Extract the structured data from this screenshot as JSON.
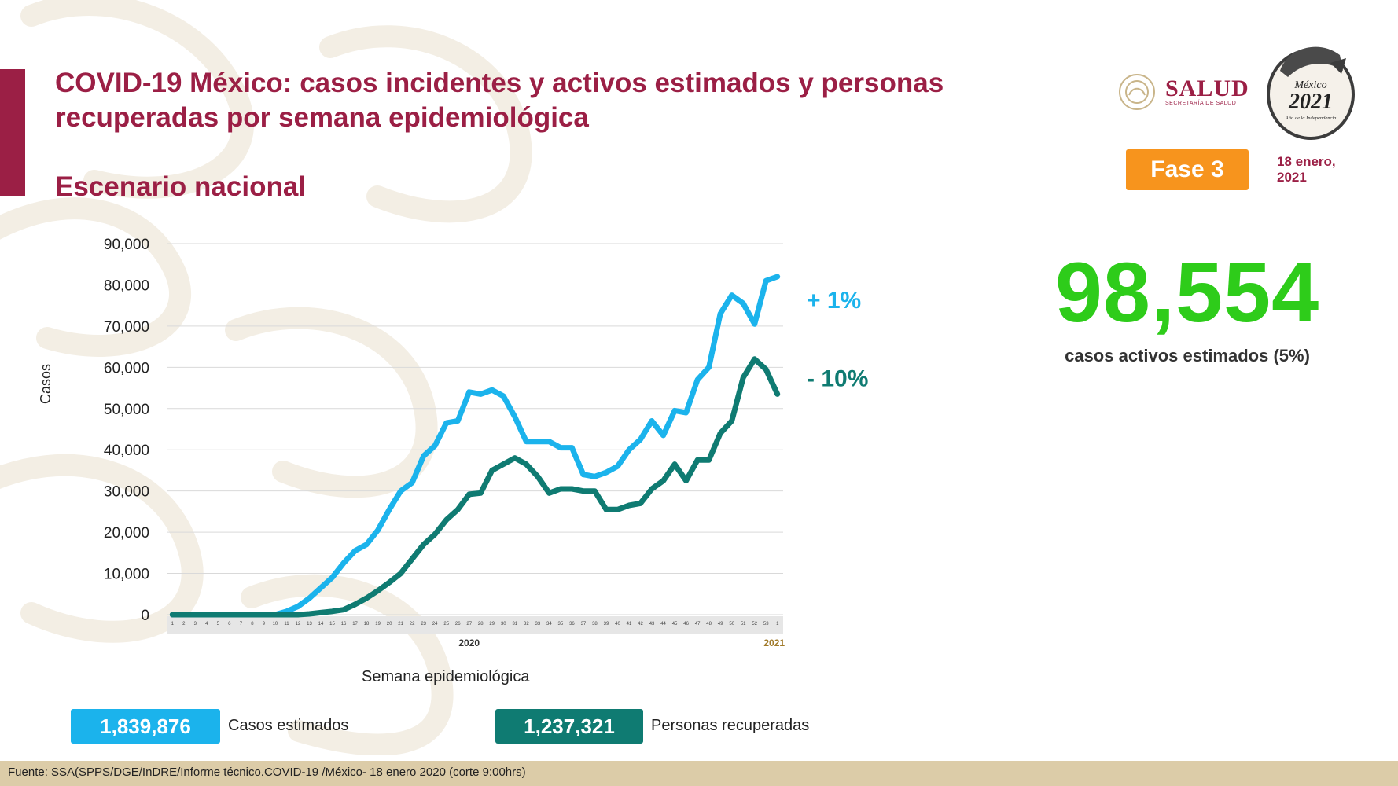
{
  "title": "COVID-19 México: casos incidentes y activos estimados y personas recuperadas por semana epidemiológica",
  "subtitle": "Escenario nacional",
  "logo": {
    "salud": "SALUD",
    "salud_sub": "SECRETARÍA DE SALUD",
    "emblem_year": "2021",
    "emblem_name": "México",
    "emblem_sub": "Año de la Independencia"
  },
  "phase_badge": "Fase 3",
  "date": "18 enero,\n2021",
  "active_cases": {
    "value": "98,554",
    "caption": "casos activos estimados (5%)"
  },
  "legend": {
    "estimated": {
      "value": "1,839,876",
      "label": "Casos estimados"
    },
    "recovered": {
      "value": "1,237,321",
      "label": "Personas recuperadas"
    }
  },
  "footer": "Fuente: SSA(SPPS/DGE/InDRE/Informe técnico.COVID-19 /México- 18 enero 2020 (corte 9:00hrs)",
  "colors": {
    "accent": "#9b1f45",
    "estimated": "#1bb3ec",
    "recovered": "#0f7b72",
    "active": "#2ecc1a",
    "badge": "#f7941d"
  },
  "chart_data": {
    "type": "line",
    "xlabel": "Semana epidemiológica",
    "ylabel": "Casos",
    "ylim": [
      0,
      90000
    ],
    "yticks": [
      "0",
      "10,000",
      "20,000",
      "30,000",
      "40,000",
      "50,000",
      "60,000",
      "70,000",
      "80,000",
      "90,000"
    ],
    "year_labels": [
      {
        "label": "2020",
        "after_index": 26
      },
      {
        "label": "2021",
        "after_index": 53
      }
    ],
    "categories": [
      "1",
      "2",
      "3",
      "4",
      "5",
      "6",
      "7",
      "8",
      "9",
      "10",
      "11",
      "12",
      "13",
      "14",
      "15",
      "16",
      "17",
      "18",
      "19",
      "20",
      "21",
      "22",
      "23",
      "24",
      "25",
      "26",
      "27",
      "28",
      "29",
      "30",
      "31",
      "32",
      "33",
      "34",
      "35",
      "36",
      "37",
      "38",
      "39",
      "40",
      "41",
      "42",
      "43",
      "44",
      "45",
      "46",
      "47",
      "48",
      "49",
      "50",
      "51",
      "52",
      "53",
      "1"
    ],
    "grid": true,
    "series": [
      {
        "name": "Casos estimados",
        "annotation": "+ 1%",
        "values": [
          0,
          0,
          0,
          0,
          0,
          0,
          0,
          0,
          0,
          0,
          800,
          2000,
          4000,
          6500,
          9000,
          12500,
          15500,
          17000,
          20500,
          25500,
          30000,
          32000,
          38500,
          41000,
          46500,
          47000,
          54000,
          53500,
          54500,
          53000,
          48000,
          42000,
          42000,
          42000,
          40500,
          40500,
          34000,
          33500,
          34500,
          36000,
          40000,
          42500,
          47000,
          43500,
          49500,
          49000,
          57000,
          60000,
          73000,
          77500,
          75500,
          70500,
          81000,
          82000
        ]
      },
      {
        "name": "Personas recuperadas",
        "annotation": "- 10%",
        "values": [
          0,
          0,
          0,
          0,
          0,
          0,
          0,
          0,
          0,
          0,
          0,
          0,
          200,
          500,
          800,
          1200,
          2500,
          4000,
          5800,
          7800,
          10000,
          13500,
          17000,
          19500,
          23000,
          25500,
          29200,
          29500,
          35000,
          36500,
          38000,
          36500,
          33500,
          29500,
          30500,
          30500,
          30000,
          30000,
          25500,
          25500,
          26500,
          27000,
          30500,
          32500,
          36500,
          32500,
          37500,
          37500,
          44000,
          47000,
          57500,
          62000,
          59500,
          53500
        ]
      }
    ]
  }
}
